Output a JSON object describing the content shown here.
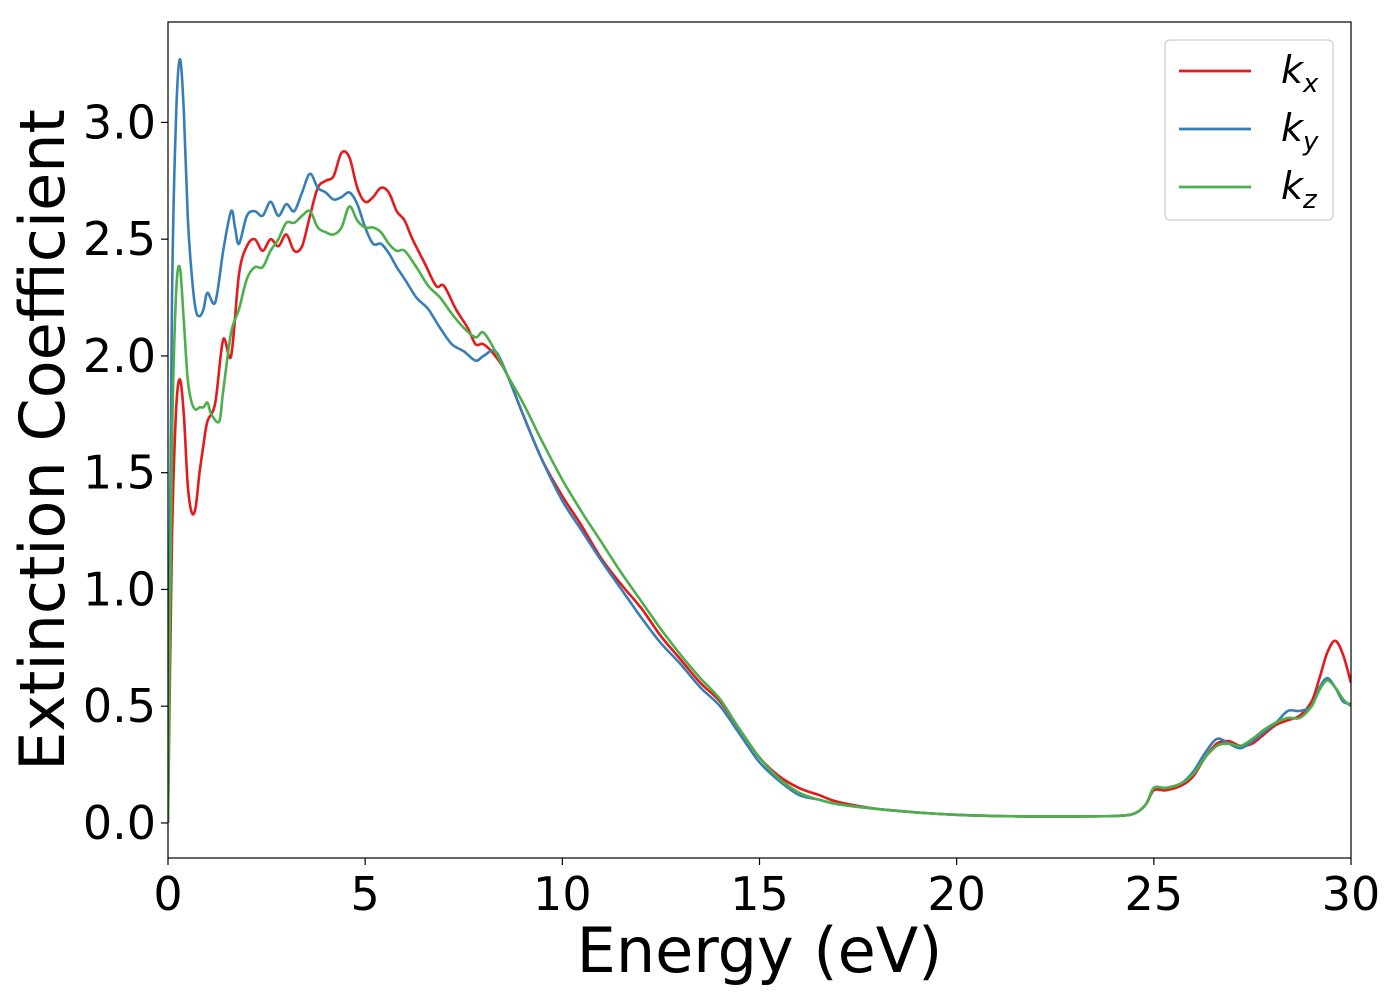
{
  "chart_data": {
    "type": "line",
    "xlabel": "Energy (eV)",
    "ylabel": "Extinction Coefficient",
    "xlim": [
      0,
      30
    ],
    "ylim": [
      -0.15,
      3.43
    ],
    "xticks": [
      0,
      5,
      10,
      15,
      20,
      25,
      30
    ],
    "xtick_labels": [
      "0",
      "5",
      "10",
      "15",
      "20",
      "25",
      "30"
    ],
    "yticks": [
      0.0,
      0.5,
      1.0,
      1.5,
      2.0,
      2.5,
      3.0
    ],
    "ytick_labels": [
      "0.0",
      "0.5",
      "1.0",
      "1.5",
      "2.0",
      "2.5",
      "3.0"
    ],
    "grid": false,
    "legend_position": "top-right",
    "series": [
      {
        "name": "k_x",
        "label_base": "k",
        "label_sub": "x",
        "color": "#e41a1c",
        "x": [
          0,
          0.1,
          0.2,
          0.3,
          0.4,
          0.5,
          0.6,
          0.7,
          0.8,
          0.9,
          1.0,
          1.2,
          1.4,
          1.6,
          1.8,
          2.0,
          2.2,
          2.4,
          2.6,
          2.8,
          3.0,
          3.2,
          3.4,
          3.6,
          3.8,
          4.0,
          4.2,
          4.4,
          4.6,
          4.8,
          5.0,
          5.2,
          5.4,
          5.6,
          5.8,
          6.0,
          6.2,
          6.5,
          6.8,
          7.0,
          7.3,
          7.6,
          7.8,
          8.0,
          8.3,
          8.6,
          9.0,
          9.5,
          10.0,
          10.5,
          11.0,
          11.5,
          12.0,
          12.5,
          13.0,
          13.5,
          14.0,
          14.5,
          15.0,
          15.5,
          16.0,
          16.5,
          17.0,
          18.0,
          19.0,
          20.0,
          21.0,
          22.0,
          23.0,
          24.0,
          24.5,
          24.8,
          25.0,
          25.3,
          25.7,
          26.0,
          26.3,
          26.6,
          26.9,
          27.2,
          27.5,
          27.8,
          28.1,
          28.4,
          28.7,
          29.0,
          29.2,
          29.4,
          29.6,
          29.8,
          30.0
        ],
        "y": [
          0.0,
          1.2,
          1.75,
          1.9,
          1.75,
          1.45,
          1.33,
          1.35,
          1.5,
          1.62,
          1.72,
          1.8,
          2.07,
          2.0,
          2.35,
          2.47,
          2.5,
          2.45,
          2.5,
          2.47,
          2.52,
          2.45,
          2.47,
          2.6,
          2.72,
          2.75,
          2.77,
          2.87,
          2.85,
          2.72,
          2.66,
          2.68,
          2.72,
          2.7,
          2.62,
          2.58,
          2.5,
          2.4,
          2.3,
          2.3,
          2.2,
          2.12,
          2.05,
          2.05,
          2.0,
          1.92,
          1.75,
          1.55,
          1.4,
          1.27,
          1.13,
          1.02,
          0.92,
          0.8,
          0.7,
          0.6,
          0.52,
          0.4,
          0.28,
          0.2,
          0.15,
          0.12,
          0.09,
          0.06,
          0.045,
          0.035,
          0.03,
          0.028,
          0.028,
          0.03,
          0.04,
          0.08,
          0.14,
          0.14,
          0.16,
          0.2,
          0.28,
          0.34,
          0.35,
          0.33,
          0.34,
          0.38,
          0.42,
          0.44,
          0.46,
          0.52,
          0.62,
          0.73,
          0.78,
          0.72,
          0.6
        ]
      },
      {
        "name": "k_y",
        "label_base": "k",
        "label_sub": "y",
        "color": "#377eb8",
        "x": [
          0,
          0.1,
          0.2,
          0.3,
          0.4,
          0.5,
          0.6,
          0.7,
          0.8,
          0.9,
          1.0,
          1.2,
          1.4,
          1.6,
          1.7,
          1.8,
          2.0,
          2.2,
          2.4,
          2.6,
          2.8,
          3.0,
          3.2,
          3.4,
          3.6,
          3.8,
          4.0,
          4.2,
          4.4,
          4.6,
          4.8,
          5.0,
          5.2,
          5.4,
          5.6,
          5.8,
          6.0,
          6.3,
          6.6,
          6.9,
          7.2,
          7.5,
          7.8,
          8.0,
          8.3,
          8.6,
          9.0,
          9.5,
          10.0,
          10.5,
          11.0,
          11.5,
          12.0,
          12.5,
          13.0,
          13.5,
          14.0,
          14.5,
          15.0,
          15.5,
          16.0,
          16.5,
          17.0,
          18.0,
          19.0,
          20.0,
          21.0,
          22.0,
          23.0,
          24.0,
          24.5,
          24.8,
          25.0,
          25.3,
          25.7,
          26.0,
          26.3,
          26.6,
          26.9,
          27.2,
          27.5,
          27.8,
          28.1,
          28.4,
          28.7,
          29.0,
          29.2,
          29.4,
          29.6,
          29.8,
          30.0
        ],
        "y": [
          0.0,
          2.2,
          3.0,
          3.27,
          3.05,
          2.6,
          2.35,
          2.2,
          2.17,
          2.2,
          2.27,
          2.23,
          2.45,
          2.62,
          2.55,
          2.48,
          2.6,
          2.62,
          2.6,
          2.66,
          2.6,
          2.65,
          2.62,
          2.7,
          2.78,
          2.72,
          2.7,
          2.67,
          2.68,
          2.7,
          2.65,
          2.55,
          2.48,
          2.48,
          2.44,
          2.38,
          2.33,
          2.25,
          2.2,
          2.12,
          2.05,
          2.02,
          1.98,
          2.0,
          2.02,
          1.92,
          1.75,
          1.55,
          1.38,
          1.25,
          1.12,
          1.0,
          0.88,
          0.77,
          0.68,
          0.58,
          0.5,
          0.38,
          0.26,
          0.18,
          0.12,
          0.1,
          0.08,
          0.06,
          0.045,
          0.035,
          0.03,
          0.028,
          0.028,
          0.03,
          0.04,
          0.08,
          0.15,
          0.15,
          0.17,
          0.22,
          0.3,
          0.36,
          0.34,
          0.32,
          0.35,
          0.39,
          0.43,
          0.48,
          0.48,
          0.5,
          0.58,
          0.62,
          0.58,
          0.52,
          0.51
        ]
      },
      {
        "name": "k_z",
        "label_base": "k",
        "label_sub": "z",
        "color": "#4daf4a",
        "x": [
          0,
          0.1,
          0.2,
          0.3,
          0.4,
          0.5,
          0.6,
          0.7,
          0.8,
          0.9,
          1.0,
          1.1,
          1.3,
          1.4,
          1.6,
          1.8,
          2.0,
          2.2,
          2.4,
          2.6,
          2.8,
          3.0,
          3.2,
          3.4,
          3.6,
          3.8,
          4.0,
          4.2,
          4.4,
          4.6,
          4.8,
          5.0,
          5.2,
          5.4,
          5.6,
          5.8,
          6.0,
          6.3,
          6.6,
          6.9,
          7.2,
          7.5,
          7.8,
          8.0,
          8.3,
          8.6,
          9.0,
          9.5,
          10.0,
          10.5,
          11.0,
          11.5,
          12.0,
          12.5,
          13.0,
          13.5,
          14.0,
          14.5,
          15.0,
          15.5,
          16.0,
          16.5,
          17.0,
          18.0,
          19.0,
          20.0,
          21.0,
          22.0,
          23.0,
          24.0,
          24.5,
          24.8,
          25.0,
          25.3,
          25.7,
          26.0,
          26.3,
          26.6,
          26.9,
          27.2,
          27.5,
          27.8,
          28.1,
          28.4,
          28.7,
          29.0,
          29.2,
          29.4,
          29.6,
          29.8,
          30.0
        ],
        "y": [
          0.0,
          1.6,
          2.25,
          2.38,
          2.15,
          1.9,
          1.8,
          1.77,
          1.78,
          1.78,
          1.8,
          1.75,
          1.72,
          1.85,
          2.1,
          2.2,
          2.33,
          2.38,
          2.38,
          2.45,
          2.5,
          2.57,
          2.57,
          2.6,
          2.62,
          2.55,
          2.53,
          2.52,
          2.55,
          2.64,
          2.58,
          2.55,
          2.55,
          2.53,
          2.48,
          2.45,
          2.45,
          2.38,
          2.3,
          2.25,
          2.18,
          2.12,
          2.08,
          2.1,
          2.02,
          1.92,
          1.8,
          1.63,
          1.47,
          1.33,
          1.2,
          1.07,
          0.95,
          0.83,
          0.72,
          0.62,
          0.53,
          0.4,
          0.28,
          0.19,
          0.13,
          0.1,
          0.08,
          0.06,
          0.045,
          0.035,
          0.03,
          0.028,
          0.028,
          0.03,
          0.04,
          0.08,
          0.15,
          0.15,
          0.17,
          0.21,
          0.28,
          0.33,
          0.34,
          0.33,
          0.36,
          0.4,
          0.43,
          0.45,
          0.45,
          0.5,
          0.57,
          0.61,
          0.58,
          0.53,
          0.5
        ]
      }
    ]
  }
}
